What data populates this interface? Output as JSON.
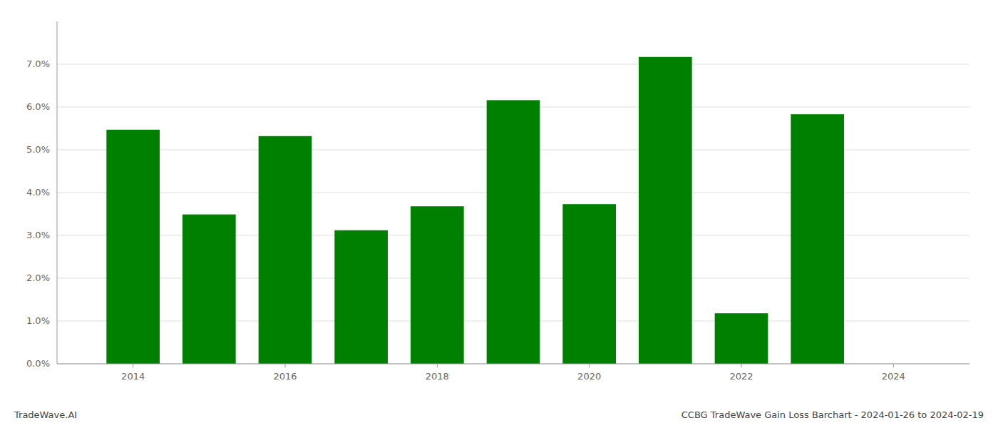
{
  "chart_data": {
    "type": "bar",
    "title": "CCBG TradeWave Gain Loss Barchart - 2024-01-26 to 2024-02-19",
    "annotations": [
      "TradeWave.AI"
    ],
    "x": [
      2014,
      2015,
      2016,
      2017,
      2018,
      2019,
      2020,
      2021,
      2022,
      2023
    ],
    "values": [
      0.0547,
      0.0349,
      0.0532,
      0.0312,
      0.0368,
      0.0616,
      0.0373,
      0.0717,
      0.0118,
      0.0583
    ],
    "color": "#008000",
    "xlim": [
      2013.0,
      2025.0
    ],
    "xticks": [
      2014,
      2016,
      2018,
      2020,
      2022,
      2024
    ],
    "ylim": [
      0.0,
      0.08
    ],
    "yticks": [
      {
        "value": 0.0,
        "label": "0.0%"
      },
      {
        "value": 0.01,
        "label": "1.0%"
      },
      {
        "value": 0.02,
        "label": "2.0%"
      },
      {
        "value": 0.03,
        "label": "3.0%"
      },
      {
        "value": 0.04,
        "label": "4.0%"
      },
      {
        "value": 0.05,
        "label": "5.0%"
      },
      {
        "value": 0.06,
        "label": "6.0%"
      },
      {
        "value": 0.07,
        "label": "7.0%"
      }
    ],
    "grid": true
  }
}
